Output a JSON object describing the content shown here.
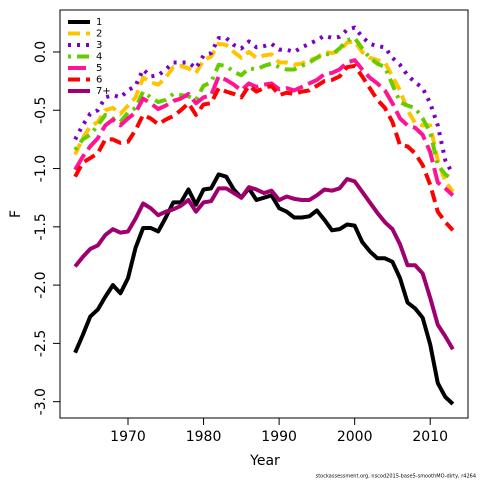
{
  "chart_data": {
    "type": "line",
    "x_label": "Year",
    "y_label": "F",
    "footnote": "stockassessment.org, nscod2015-base5-smoothMO-dirty, r4264",
    "x": [
      1963,
      1964,
      1965,
      1966,
      1967,
      1968,
      1969,
      1970,
      1971,
      1972,
      1973,
      1974,
      1975,
      1976,
      1977,
      1978,
      1979,
      1980,
      1981,
      1982,
      1983,
      1984,
      1985,
      1986,
      1987,
      1988,
      1989,
      1990,
      1991,
      1992,
      1993,
      1994,
      1995,
      1996,
      1997,
      1998,
      1999,
      2000,
      2001,
      2002,
      2003,
      2004,
      2005,
      2006,
      2007,
      2008,
      2009,
      2010,
      2011,
      2012,
      2013
    ],
    "xlim": [
      1961,
      2015
    ],
    "xticks": [
      1970,
      1980,
      1990,
      2000,
      2010
    ],
    "ylim": [
      -3.14,
      0.36
    ],
    "yticks": [
      {
        "value": -3,
        "label": "-3.0"
      },
      -2.5,
      {
        "value": -2,
        "label": "-2.0"
      },
      -1.5,
      {
        "value": -1,
        "label": "-1.0"
      },
      -0.5,
      {
        "value": 0,
        "label": "0.0"
      }
    ],
    "legend": "top-left",
    "series": [
      {
        "name": "1",
        "color": "#000000",
        "linestyle": "solid",
        "values": [
          -2.58,
          -2.43,
          -2.27,
          -2.21,
          -2.1,
          -2.0,
          -2.07,
          -1.94,
          -1.68,
          -1.51,
          -1.51,
          -1.54,
          -1.42,
          -1.29,
          -1.29,
          -1.18,
          -1.31,
          -1.18,
          -1.17,
          -1.05,
          -1.07,
          -1.18,
          -1.25,
          -1.17,
          -1.27,
          -1.25,
          -1.23,
          -1.34,
          -1.37,
          -1.42,
          -1.42,
          -1.41,
          -1.36,
          -1.44,
          -1.53,
          -1.52,
          -1.48,
          -1.49,
          -1.63,
          -1.71,
          -1.77,
          -1.77,
          -1.8,
          -1.94,
          -2.15,
          -2.2,
          -2.28,
          -2.51,
          -2.84,
          -2.96,
          -3.02
        ]
      },
      {
        "name": "2",
        "color": "#FFC400",
        "linestyle": "dashed",
        "values": [
          -0.88,
          -0.74,
          -0.64,
          -0.6,
          -0.5,
          -0.48,
          -0.53,
          -0.46,
          -0.39,
          -0.22,
          -0.26,
          -0.28,
          -0.22,
          -0.13,
          -0.12,
          -0.14,
          -0.18,
          -0.07,
          -0.04,
          0.07,
          0.06,
          0.0,
          -0.05,
          0.0,
          -0.05,
          -0.03,
          -0.02,
          -0.09,
          -0.09,
          -0.11,
          -0.1,
          -0.07,
          -0.05,
          0.0,
          -0.01,
          0.01,
          0.08,
          0.09,
          0.0,
          -0.05,
          -0.07,
          -0.09,
          -0.21,
          -0.33,
          -0.5,
          -0.61,
          -0.63,
          -0.63,
          -0.93,
          -1.11,
          -1.2
        ]
      },
      {
        "name": "3",
        "color": "#7A00C2",
        "linestyle": "dotted",
        "values": [
          -0.75,
          -0.63,
          -0.53,
          -0.5,
          -0.39,
          -0.37,
          -0.39,
          -0.33,
          -0.29,
          -0.15,
          -0.21,
          -0.2,
          -0.15,
          -0.09,
          -0.09,
          -0.09,
          -0.14,
          -0.03,
          -0.01,
          0.12,
          0.12,
          0.06,
          0.03,
          0.09,
          0.04,
          0.05,
          0.07,
          0.02,
          0.02,
          0.0,
          0.04,
          0.07,
          0.1,
          0.14,
          0.12,
          0.13,
          0.19,
          0.21,
          0.13,
          0.07,
          0.05,
          0.04,
          -0.05,
          -0.11,
          -0.2,
          -0.26,
          -0.31,
          -0.44,
          -0.63,
          -0.93,
          -1.05
        ]
      },
      {
        "name": "4",
        "color": "#66CC00",
        "linestyle": "dotdash",
        "values": [
          -0.84,
          -0.75,
          -0.71,
          -0.63,
          -0.54,
          -0.57,
          -0.6,
          -0.52,
          -0.48,
          -0.34,
          -0.39,
          -0.43,
          -0.41,
          -0.36,
          -0.37,
          -0.38,
          -0.41,
          -0.29,
          -0.26,
          -0.11,
          -0.12,
          -0.17,
          -0.2,
          -0.14,
          -0.15,
          -0.12,
          -0.1,
          -0.13,
          -0.15,
          -0.15,
          -0.12,
          -0.09,
          -0.05,
          -0.02,
          -0.02,
          0.03,
          0.1,
          0.12,
          0.03,
          -0.05,
          -0.1,
          -0.13,
          -0.28,
          -0.43,
          -0.46,
          -0.48,
          -0.57,
          -0.69,
          -0.97,
          -1.05,
          -1.1
        ]
      },
      {
        "name": "5",
        "color": "#FF1493",
        "linestyle": "longdash",
        "values": [
          -1.01,
          -0.9,
          -0.81,
          -0.74,
          -0.63,
          -0.58,
          -0.63,
          -0.57,
          -0.52,
          -0.4,
          -0.44,
          -0.49,
          -0.46,
          -0.42,
          -0.4,
          -0.36,
          -0.44,
          -0.39,
          -0.37,
          -0.21,
          -0.24,
          -0.28,
          -0.33,
          -0.27,
          -0.3,
          -0.28,
          -0.27,
          -0.32,
          -0.31,
          -0.33,
          -0.3,
          -0.27,
          -0.24,
          -0.19,
          -0.18,
          -0.15,
          -0.09,
          -0.07,
          -0.15,
          -0.22,
          -0.27,
          -0.33,
          -0.44,
          -0.57,
          -0.63,
          -0.65,
          -0.71,
          -0.86,
          -1.12,
          -1.17,
          -1.23
        ]
      },
      {
        "name": "6",
        "color": "#FF0000",
        "linestyle": "dashed",
        "values": [
          -1.07,
          -0.95,
          -0.91,
          -0.87,
          -0.75,
          -0.75,
          -0.78,
          -0.77,
          -0.67,
          -0.54,
          -0.57,
          -0.62,
          -0.58,
          -0.55,
          -0.5,
          -0.44,
          -0.54,
          -0.45,
          -0.44,
          -0.31,
          -0.34,
          -0.36,
          -0.39,
          -0.29,
          -0.34,
          -0.31,
          -0.29,
          -0.37,
          -0.35,
          -0.36,
          -0.34,
          -0.33,
          -0.29,
          -0.25,
          -0.24,
          -0.21,
          -0.13,
          -0.12,
          -0.21,
          -0.31,
          -0.41,
          -0.48,
          -0.6,
          -0.8,
          -0.81,
          -0.87,
          -0.97,
          -1.14,
          -1.37,
          -1.46,
          -1.53
        ]
      },
      {
        "name": "7+",
        "color": "#A0006E",
        "linestyle": "solid",
        "values": [
          -1.84,
          -1.76,
          -1.69,
          -1.66,
          -1.57,
          -1.52,
          -1.55,
          -1.54,
          -1.43,
          -1.3,
          -1.34,
          -1.4,
          -1.37,
          -1.35,
          -1.32,
          -1.27,
          -1.37,
          -1.29,
          -1.28,
          -1.17,
          -1.17,
          -1.21,
          -1.25,
          -1.16,
          -1.18,
          -1.21,
          -1.19,
          -1.27,
          -1.24,
          -1.26,
          -1.27,
          -1.27,
          -1.23,
          -1.18,
          -1.19,
          -1.17,
          -1.09,
          -1.11,
          -1.2,
          -1.29,
          -1.38,
          -1.46,
          -1.52,
          -1.65,
          -1.83,
          -1.83,
          -1.9,
          -2.11,
          -2.34,
          -2.44,
          -2.55
        ]
      }
    ]
  }
}
